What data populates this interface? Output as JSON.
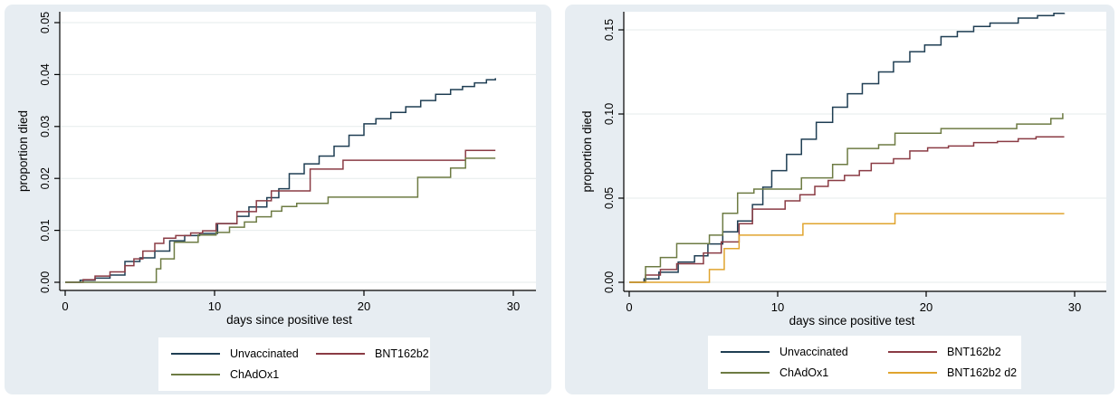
{
  "colors": {
    "figure_bg": "#e7edf2",
    "plot_bg": "#ffffff",
    "grid": "#e6ebeb",
    "axis": "#000000",
    "legend_bg": "#ffffff",
    "unvaccinated": "#1f3e53",
    "bnt162b2": "#8a3b44",
    "chadox1": "#6d7b43",
    "bnt162b2_d2": "#e0a42e"
  },
  "chart_data": [
    {
      "type": "line",
      "step": true,
      "title": "",
      "xlabel": "days since positive test",
      "ylabel": "proportion died",
      "xlim": [
        0,
        30
      ],
      "ylim": [
        0,
        0.05
      ],
      "grid": "horizontal",
      "legend_position": "below",
      "xticks": [
        {
          "label": "0",
          "value": 0
        },
        {
          "label": "10",
          "value": 10
        },
        {
          "label": "20",
          "value": 20
        },
        {
          "label": "30",
          "value": 30
        }
      ],
      "yticks": [
        {
          "label": "0.00",
          "value": 0
        },
        {
          "label": "0.01",
          "value": 0.01
        },
        {
          "label": "0.02",
          "value": 0.02
        },
        {
          "label": "0.03",
          "value": 0.03
        },
        {
          "label": "0.04",
          "value": 0.04
        },
        {
          "label": "0.05",
          "value": 0.05
        }
      ],
      "series": [
        {
          "name": "Unvaccinated",
          "color": "#1f3e53",
          "points": [
            [
              0,
              0
            ],
            [
              1,
              0.0004
            ],
            [
              2,
              0.0008
            ],
            [
              3,
              0.0014
            ],
            [
              4,
              0.004
            ],
            [
              5,
              0.0047
            ],
            [
              6,
              0.006
            ],
            [
              7,
              0.008
            ],
            [
              8,
              0.009
            ],
            [
              9,
              0.0094
            ],
            [
              10.2,
              0.0113
            ],
            [
              11.5,
              0.0127
            ],
            [
              12.3,
              0.0145
            ],
            [
              13.5,
              0.0163
            ],
            [
              14.3,
              0.018
            ],
            [
              15,
              0.0209
            ],
            [
              16,
              0.0228
            ],
            [
              17,
              0.0243
            ],
            [
              18,
              0.0262
            ],
            [
              19,
              0.0283
            ],
            [
              20,
              0.0305
            ],
            [
              20.8,
              0.0315
            ],
            [
              21.8,
              0.0327
            ],
            [
              22.8,
              0.0338
            ],
            [
              23.8,
              0.035
            ],
            [
              24.8,
              0.0362
            ],
            [
              25.8,
              0.0371
            ],
            [
              26.6,
              0.0377
            ],
            [
              27.4,
              0.0384
            ],
            [
              28.2,
              0.039
            ],
            [
              28.8,
              0.0393
            ]
          ]
        },
        {
          "name": "BNT162b2",
          "color": "#8a3b44",
          "points": [
            [
              0,
              0
            ],
            [
              1.2,
              0.0005
            ],
            [
              2,
              0.0012
            ],
            [
              3,
              0.002
            ],
            [
              4,
              0.0032
            ],
            [
              4.6,
              0.0045
            ],
            [
              5.2,
              0.006
            ],
            [
              6,
              0.0075
            ],
            [
              6.6,
              0.0085
            ],
            [
              7.4,
              0.009
            ],
            [
              8.4,
              0.0095
            ],
            [
              9.2,
              0.0099
            ],
            [
              10.1,
              0.0113
            ],
            [
              11.5,
              0.0136
            ],
            [
              12.8,
              0.0157
            ],
            [
              13.8,
              0.0176
            ],
            [
              16.4,
              0.0218
            ],
            [
              18.6,
              0.0235
            ],
            [
              26.8,
              0.0254
            ],
            [
              28.8,
              0.0254
            ]
          ]
        },
        {
          "name": "ChAdOx1",
          "color": "#6d7b43",
          "points": [
            [
              0,
              0
            ],
            [
              6.1,
              0.0026
            ],
            [
              6.4,
              0.0045
            ],
            [
              7.3,
              0.0077
            ],
            [
              8.9,
              0.0091
            ],
            [
              10.1,
              0.0096
            ],
            [
              11,
              0.0106
            ],
            [
              12,
              0.0116
            ],
            [
              12.8,
              0.0126
            ],
            [
              13.8,
              0.0137
            ],
            [
              14.5,
              0.0146
            ],
            [
              15.5,
              0.0152
            ],
            [
              17.6,
              0.0164
            ],
            [
              23.6,
              0.0202
            ],
            [
              25.8,
              0.022
            ],
            [
              26.8,
              0.0239
            ],
            [
              28.8,
              0.0239
            ]
          ]
        }
      ]
    },
    {
      "type": "line",
      "step": true,
      "title": "",
      "xlabel": "days since positive test",
      "ylabel": "proportion died",
      "xlim": [
        0,
        30
      ],
      "ylim": [
        0,
        0.15
      ],
      "grid": "horizontal",
      "legend_position": "below",
      "xticks": [
        {
          "label": "0",
          "value": 0
        },
        {
          "label": "10",
          "value": 10
        },
        {
          "label": "20",
          "value": 20
        },
        {
          "label": "30",
          "value": 30
        }
      ],
      "yticks": [
        {
          "label": "0.00",
          "value": 0
        },
        {
          "label": "0.05",
          "value": 0.05
        },
        {
          "label": "0.10",
          "value": 0.1
        },
        {
          "label": "0.15",
          "value": 0.15
        }
      ],
      "series": [
        {
          "name": "Unvaccinated",
          "color": "#1f3e53",
          "points": [
            [
              0,
              0
            ],
            [
              1,
              0.002
            ],
            [
              2,
              0.006
            ],
            [
              3.3,
              0.012
            ],
            [
              4.4,
              0.0157
            ],
            [
              5.3,
              0.0228
            ],
            [
              6.3,
              0.03
            ],
            [
              7.3,
              0.0364
            ],
            [
              8.3,
              0.0462
            ],
            [
              9,
              0.0565
            ],
            [
              9.6,
              0.0663
            ],
            [
              10.6,
              0.076
            ],
            [
              11.6,
              0.085
            ],
            [
              12.6,
              0.095
            ],
            [
              13.7,
              0.104
            ],
            [
              14.7,
              0.112
            ],
            [
              15.7,
              0.118
            ],
            [
              16.8,
              0.125
            ],
            [
              17.8,
              0.131
            ],
            [
              18.9,
              0.137
            ],
            [
              19.9,
              0.141
            ],
            [
              21,
              0.146
            ],
            [
              22.1,
              0.149
            ],
            [
              23.2,
              0.152
            ],
            [
              24.3,
              0.154
            ],
            [
              26.2,
              0.157
            ],
            [
              27.5,
              0.1585
            ],
            [
              28.6,
              0.1598
            ],
            [
              29.3,
              0.16
            ]
          ]
        },
        {
          "name": "BNT162b2",
          "color": "#8a3b44",
          "points": [
            [
              0,
              0
            ],
            [
              1.1,
              0.0043
            ],
            [
              2.1,
              0.0076
            ],
            [
              3.2,
              0.011
            ],
            [
              5,
              0.0174
            ],
            [
              6.2,
              0.024
            ],
            [
              7.4,
              0.0348
            ],
            [
              8.3,
              0.0435
            ],
            [
              10.5,
              0.0484
            ],
            [
              11.5,
              0.052
            ],
            [
              12.5,
              0.057
            ],
            [
              13.4,
              0.0605
            ],
            [
              14.5,
              0.0635
            ],
            [
              15.5,
              0.0663
            ],
            [
              16.3,
              0.0707
            ],
            [
              17.8,
              0.0734
            ],
            [
              18.9,
              0.078
            ],
            [
              20.1,
              0.0799
            ],
            [
              21.5,
              0.081
            ],
            [
              23.2,
              0.083
            ],
            [
              24.8,
              0.0837
            ],
            [
              26.2,
              0.0853
            ],
            [
              27.4,
              0.0864
            ],
            [
              29.3,
              0.0864
            ]
          ]
        },
        {
          "name": "ChAdOx1",
          "color": "#6d7b43",
          "points": [
            [
              0,
              0
            ],
            [
              1.1,
              0.0093
            ],
            [
              2.1,
              0.0147
            ],
            [
              3.2,
              0.023
            ],
            [
              5.4,
              0.028
            ],
            [
              6.3,
              0.041
            ],
            [
              7.3,
              0.053
            ],
            [
              8.4,
              0.0554
            ],
            [
              11.6,
              0.062
            ],
            [
              13.7,
              0.07
            ],
            [
              14.7,
              0.0795
            ],
            [
              16.8,
              0.0817
            ],
            [
              17.9,
              0.0886
            ],
            [
              21,
              0.0913
            ],
            [
              26.1,
              0.094
            ],
            [
              28.4,
              0.0973
            ],
            [
              29.2,
              0.1005
            ]
          ]
        },
        {
          "name": "BNT162b2 d2",
          "color": "#e0a42e",
          "points": [
            [
              0,
              0
            ],
            [
              5.4,
              0.0076
            ],
            [
              6.4,
              0.02
            ],
            [
              7.4,
              0.028
            ],
            [
              11.7,
              0.0348
            ],
            [
              17.9,
              0.0408
            ],
            [
              29.3,
              0.0408
            ]
          ]
        }
      ]
    }
  ]
}
